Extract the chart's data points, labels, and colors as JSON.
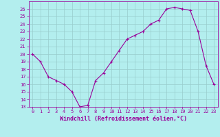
{
  "x": [
    0,
    1,
    2,
    3,
    4,
    5,
    6,
    7,
    8,
    9,
    10,
    11,
    12,
    13,
    14,
    15,
    16,
    17,
    18,
    19,
    20,
    21,
    22,
    23
  ],
  "y": [
    20,
    19,
    17,
    16.5,
    16,
    15,
    13,
    13.2,
    16.5,
    17.5,
    19,
    20.5,
    22,
    22.5,
    23,
    24,
    24.5,
    26,
    26.2,
    26,
    25.8,
    23,
    18.5,
    16
  ],
  "line_color": "#990099",
  "marker": "+",
  "bg_color": "#b3eeee",
  "grid_color": "#99cccc",
  "xlabel": "Windchill (Refroidissement éolien,°C)",
  "ylim": [
    13,
    27
  ],
  "yticks": [
    13,
    14,
    15,
    16,
    17,
    18,
    19,
    20,
    21,
    22,
    23,
    24,
    25,
    26
  ],
  "xticks": [
    0,
    1,
    2,
    3,
    4,
    5,
    6,
    7,
    8,
    9,
    10,
    11,
    12,
    13,
    14,
    15,
    16,
    17,
    18,
    19,
    20,
    21,
    22,
    23
  ],
  "tick_color": "#990099",
  "tick_fontsize": 5.0,
  "xlabel_fontsize": 6.0,
  "axis_label_color": "#990099",
  "spine_color": "#990099"
}
